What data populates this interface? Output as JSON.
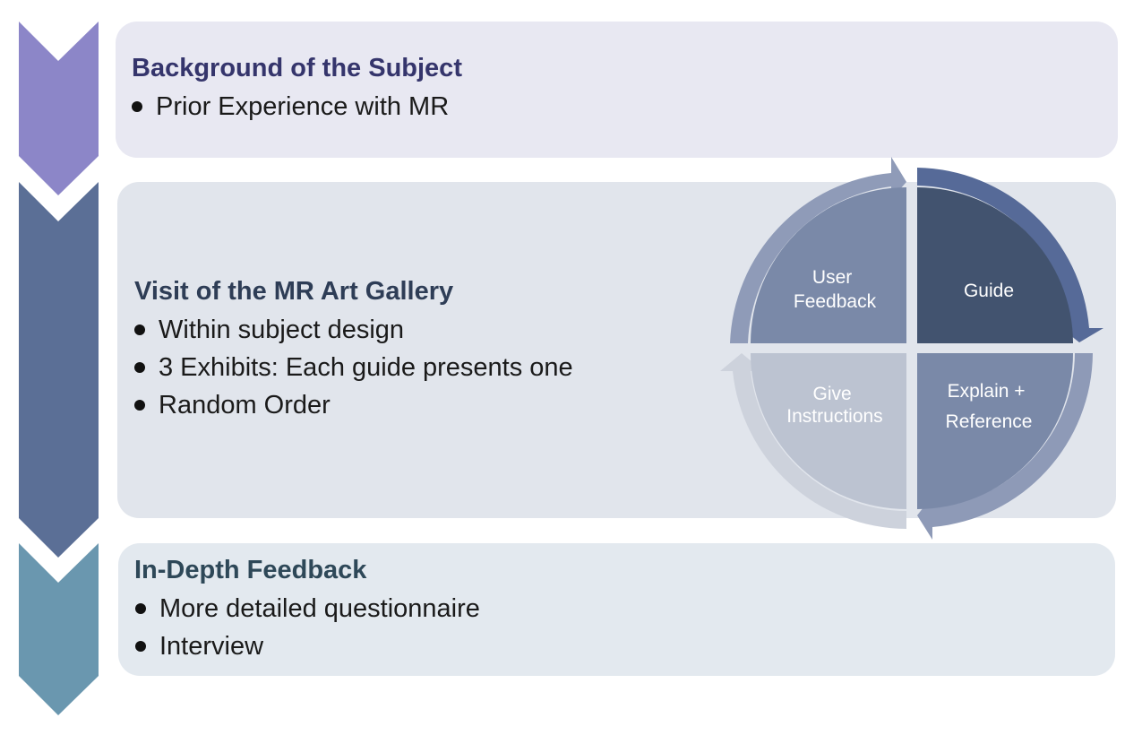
{
  "stages": [
    {
      "title": "Background of the Subject",
      "bullets": [
        "Prior Experience with MR"
      ],
      "chevron_color": "#8c86c8",
      "title_color": "#35356c"
    },
    {
      "title": "Visit of the MR Art Gallery",
      "bullets": [
        "Within subject design",
        "3 Exhibits: Each guide presents one",
        "Random Order"
      ],
      "chevron_color": "#5b6f96",
      "title_color": "#2e3d56"
    },
    {
      "title": "In-Depth Feedback",
      "bullets": [
        "More detailed questionnaire",
        "Interview"
      ],
      "chevron_color": "#6a97af",
      "title_color": "#2e4858"
    }
  ],
  "cycle": {
    "segments": [
      {
        "label_lines": [
          "User",
          "Feedback"
        ],
        "color": "#7a89a8"
      },
      {
        "label_lines": [
          "Guide"
        ],
        "color": "#42536f"
      },
      {
        "label_lines": [
          "Explain +",
          "Reference"
        ],
        "color": "#7a89a8"
      },
      {
        "label_lines": [
          "Give",
          "Instructions"
        ],
        "color": "#bcc3d1"
      }
    ]
  }
}
